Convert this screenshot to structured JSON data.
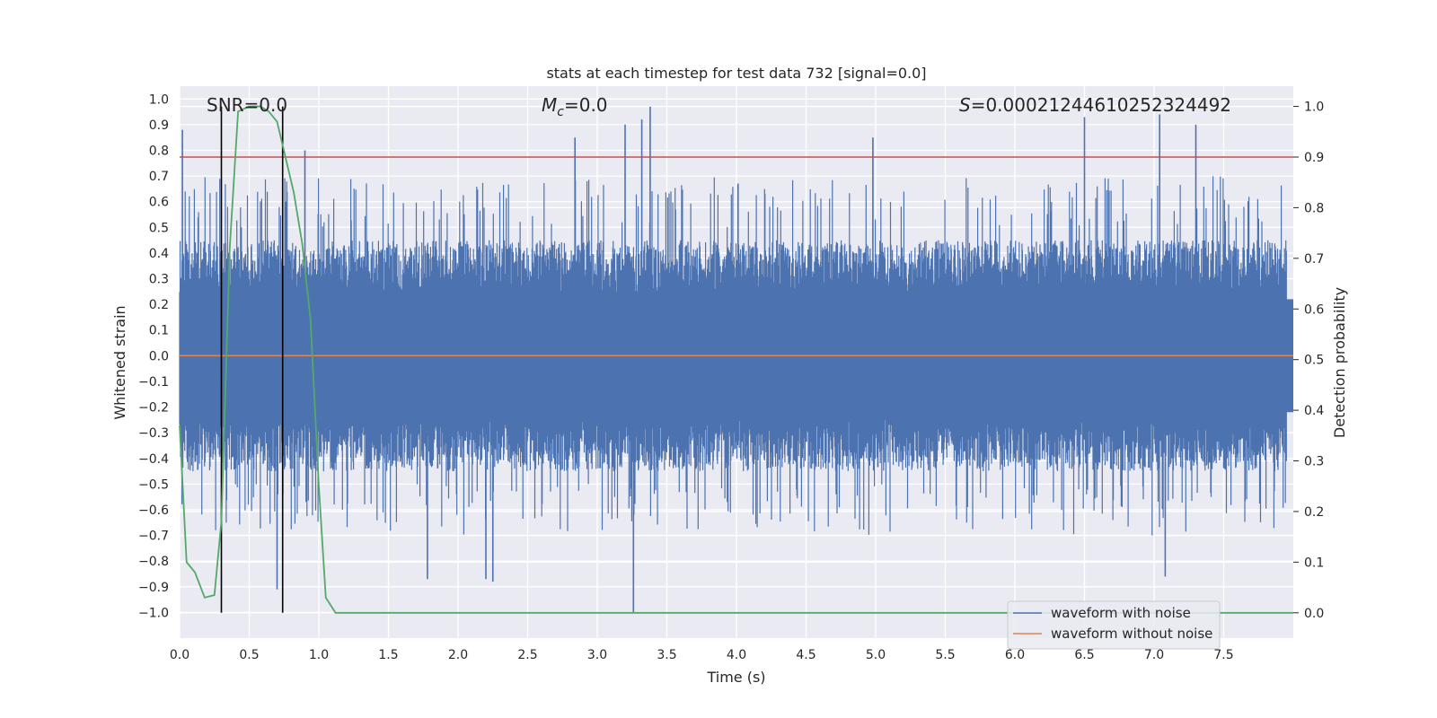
{
  "chart_data": {
    "type": "line",
    "title": "stats at each timestep for test data 732 [signal=0.0]",
    "xlabel": "Time (s)",
    "ylabel": "Whitened strain",
    "y2label": "Detection probability",
    "xlim": [
      0.0,
      8.0
    ],
    "ylim": [
      -1.1,
      1.05
    ],
    "y2lim": [
      -0.05,
      1.04
    ],
    "x_ticks": [
      "0.0",
      "0.5",
      "1.0",
      "1.5",
      "2.0",
      "2.5",
      "3.0",
      "3.5",
      "4.0",
      "4.5",
      "5.0",
      "5.5",
      "6.0",
      "6.5",
      "7.0",
      "7.5"
    ],
    "y_ticks": [
      "1.0",
      "0.9",
      "0.8",
      "0.7",
      "0.6",
      "0.5",
      "0.4",
      "0.3",
      "0.2",
      "0.1",
      "0.0",
      "-0.1",
      "-0.2",
      "-0.3",
      "-0.4",
      "-0.5",
      "-0.6",
      "-0.7",
      "-0.8",
      "-0.9",
      "-1.0"
    ],
    "y2_ticks": [
      "1.0",
      "0.9",
      "0.8",
      "0.7",
      "0.6",
      "0.5",
      "0.4",
      "0.3",
      "0.2",
      "0.1",
      "0.0"
    ],
    "annotations": {
      "snr": "SNR=0.0",
      "mc_symbol": "M",
      "mc_sub": "c",
      "mc_value": "=0.0",
      "s_symbol": "S",
      "s_value": "=0.00021244610252324492"
    },
    "series": [
      {
        "name": "waveform with noise",
        "axis": "left",
        "color": "#4c72b0",
        "envelope_typical": [
          -0.45,
          0.45
        ],
        "peaks_top": [
          {
            "x": 0.02,
            "y": 0.88
          },
          {
            "x": 0.9,
            "y": 0.8
          },
          {
            "x": 2.84,
            "y": 0.85
          },
          {
            "x": 3.2,
            "y": 0.9
          },
          {
            "x": 3.32,
            "y": 0.92
          },
          {
            "x": 3.38,
            "y": 0.97
          },
          {
            "x": 4.98,
            "y": 0.85
          },
          {
            "x": 6.5,
            "y": 0.93
          },
          {
            "x": 7.04,
            "y": 0.94
          },
          {
            "x": 7.3,
            "y": 0.9
          }
        ],
        "peaks_bottom": [
          {
            "x": 0.7,
            "y": -0.91
          },
          {
            "x": 1.78,
            "y": -0.87
          },
          {
            "x": 2.2,
            "y": -0.87
          },
          {
            "x": 2.25,
            "y": -0.88
          },
          {
            "x": 3.26,
            "y": -1.0
          },
          {
            "x": 7.08,
            "y": -0.86
          }
        ]
      },
      {
        "name": "waveform without noise",
        "axis": "left",
        "color": "#dd8452",
        "x": [
          0.0,
          8.0
        ],
        "y": [
          0.0,
          0.0
        ]
      },
      {
        "name": "detection probability",
        "axis": "right",
        "color": "#55a868",
        "x": [
          0.0,
          0.05,
          0.11,
          0.18,
          0.25,
          0.3,
          0.36,
          0.42,
          0.5,
          0.58,
          0.64,
          0.7,
          0.76,
          0.82,
          0.88,
          0.94,
          1.0,
          1.05,
          1.12,
          1.3,
          8.0
        ],
        "y": [
          0.37,
          0.1,
          0.08,
          0.03,
          0.035,
          0.18,
          0.72,
          0.99,
          1.0,
          1.0,
          0.99,
          0.97,
          0.9,
          0.83,
          0.73,
          0.58,
          0.25,
          0.03,
          0.0,
          0.0,
          0.0
        ]
      }
    ],
    "threshold": {
      "axis": "right",
      "value": 0.9,
      "color": "#c44e52"
    },
    "vlines": [
      0.3,
      0.74
    ],
    "legend": {
      "position": "bottom-right",
      "entries": [
        {
          "label": "waveform with noise",
          "color": "#4c72b0"
        },
        {
          "label": "waveform without noise",
          "color": "#dd8452"
        }
      ]
    },
    "grid": true
  }
}
